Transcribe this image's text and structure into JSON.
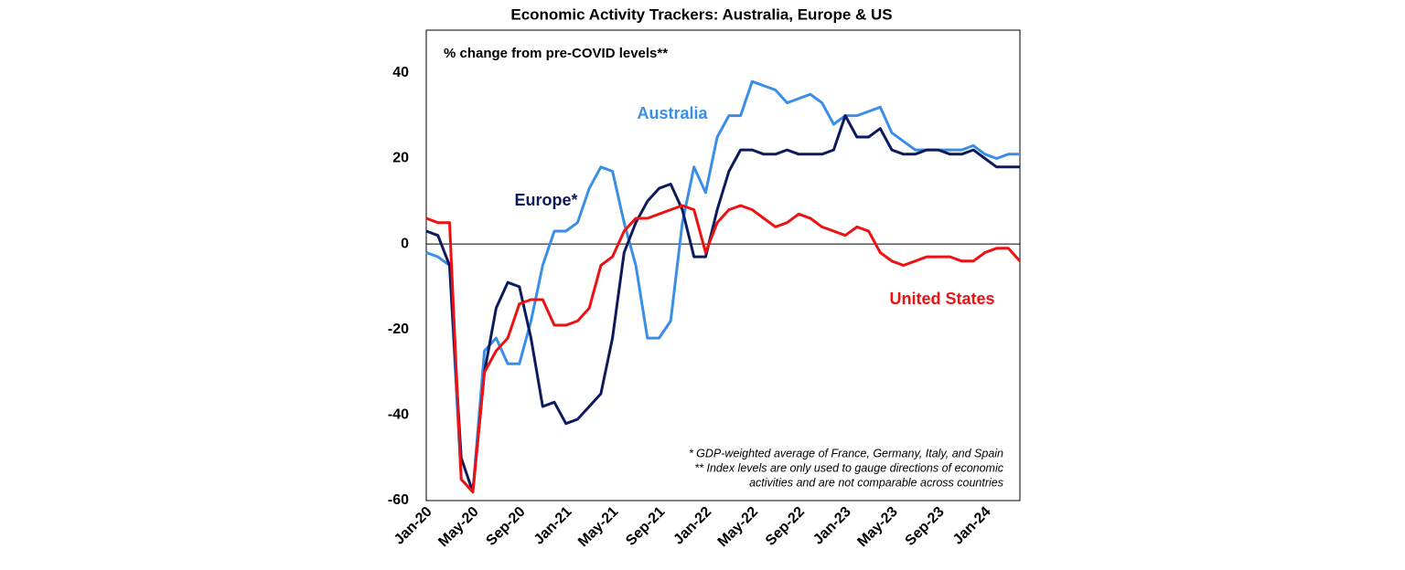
{
  "chart_data": {
    "type": "line",
    "title": "Economic Activity Trackers: Australia, Europe & US",
    "subtitle": "% change from pre-COVID levels**",
    "notes": [
      "* GDP-weighted average of France, Germany, Italy, and Spain",
      "** Index levels are only used to gauge  directions of economic",
      "activities and are not comparable across countries"
    ],
    "categories": [
      "Jan-20",
      null,
      null,
      null,
      "May-20",
      null,
      null,
      null,
      "Sep-20",
      null,
      null,
      null,
      "Jan-21",
      null,
      null,
      null,
      "May-21",
      null,
      null,
      null,
      "Sep-21",
      null,
      null,
      null,
      "Jan-22",
      null,
      null,
      null,
      "May-22",
      null,
      null,
      null,
      "Sep-22",
      null,
      null,
      null,
      "Jan-23",
      null,
      null,
      null,
      "May-23",
      null,
      null,
      null,
      "Sep-23",
      null,
      null,
      null,
      "Jan-24",
      null,
      null,
      null
    ],
    "series": [
      {
        "name": "Australia",
        "color": "#3a8ee6",
        "values": [
          -2,
          -3,
          -5,
          -55,
          -58,
          -25,
          -22,
          -28,
          -28,
          -18,
          -5,
          3,
          3,
          5,
          13,
          18,
          17,
          5,
          -5,
          -22,
          -22,
          -18,
          5,
          18,
          12,
          25,
          30,
          30,
          38,
          37,
          36,
          33,
          34,
          35,
          33,
          28,
          30,
          30,
          31,
          32,
          26,
          24,
          22,
          22,
          22,
          22,
          22,
          23,
          21,
          20,
          21,
          21
        ]
      },
      {
        "name": "Europe*",
        "color": "#0d1a5c",
        "values": [
          3,
          2,
          -5,
          -50,
          -58,
          -30,
          -15,
          -9,
          -10,
          -22,
          -38,
          -37,
          -42,
          -41,
          -38,
          -35,
          -22,
          -2,
          5,
          10,
          13,
          14,
          8,
          -3,
          -3,
          8,
          17,
          22,
          22,
          21,
          21,
          22,
          21,
          21,
          21,
          22,
          30,
          25,
          25,
          27,
          22,
          21,
          21,
          22,
          22,
          21,
          21,
          22,
          20,
          18,
          18,
          18
        ]
      },
      {
        "name": "United States",
        "color": "#ee1111",
        "values": [
          6,
          5,
          5,
          -55,
          -58,
          -30,
          -25,
          -22,
          -14,
          -13,
          -13,
          -19,
          -19,
          -18,
          -15,
          -5,
          -3,
          3,
          6,
          6,
          7,
          8,
          9,
          8,
          -2,
          5,
          8,
          9,
          8,
          6,
          4,
          5,
          7,
          6,
          4,
          3,
          2,
          4,
          3,
          -2,
          -4,
          -5,
          -4,
          -3,
          -3,
          -3,
          -4,
          -4,
          -2,
          -1,
          -1,
          -4
        ]
      }
    ],
    "ylim": [
      -60,
      50
    ],
    "yticks": [
      -60,
      -40,
      -20,
      0,
      20,
      40
    ],
    "grid": false
  }
}
